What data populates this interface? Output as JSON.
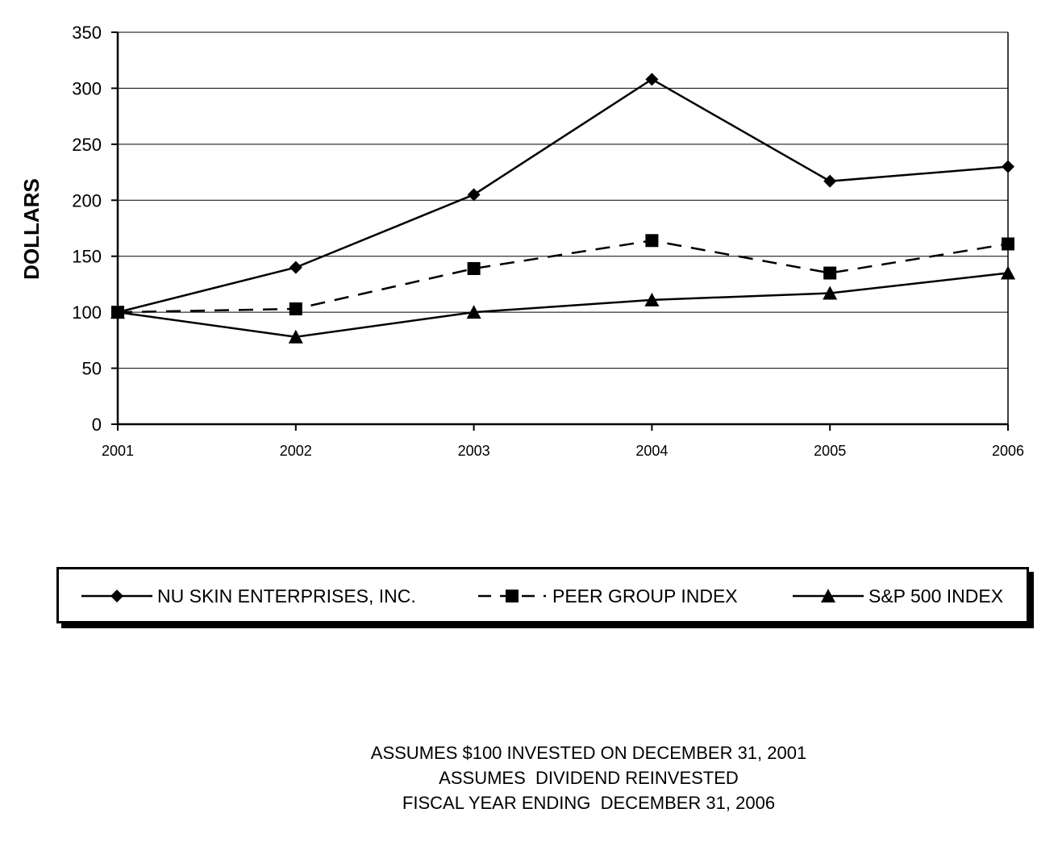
{
  "chart_data": {
    "type": "line",
    "title": "",
    "xlabel": "",
    "ylabel": "DOLLARS",
    "categories": [
      "2001",
      "2002",
      "2003",
      "2004",
      "2005",
      "2006"
    ],
    "ylim": [
      0,
      350
    ],
    "yticks": [
      0,
      50,
      100,
      150,
      200,
      250,
      300,
      350
    ],
    "grid": true,
    "legend_position": "bottom",
    "series": [
      {
        "name": "NU SKIN ENTERPRISES, INC.",
        "marker": "diamond",
        "line": "solid",
        "values": [
          100,
          140,
          205,
          308,
          217,
          230
        ]
      },
      {
        "name": "PEER GROUP INDEX",
        "marker": "square",
        "line": "dashed",
        "values": [
          100,
          103,
          139,
          164,
          135,
          161
        ]
      },
      {
        "name": "S&P 500 INDEX",
        "marker": "triangle",
        "line": "solid",
        "values": [
          100,
          78,
          100,
          111,
          117,
          135
        ]
      }
    ]
  },
  "footnotes": [
    "ASSUMES $100 INVESTED ON DECEMBER 31, 2001",
    "ASSUMES  DIVIDEND REINVESTED",
    "FISCAL YEAR ENDING  DECEMBER 31, 2006"
  ],
  "colors": {
    "line": "#000000",
    "grid": "#000000",
    "background": "#ffffff"
  }
}
